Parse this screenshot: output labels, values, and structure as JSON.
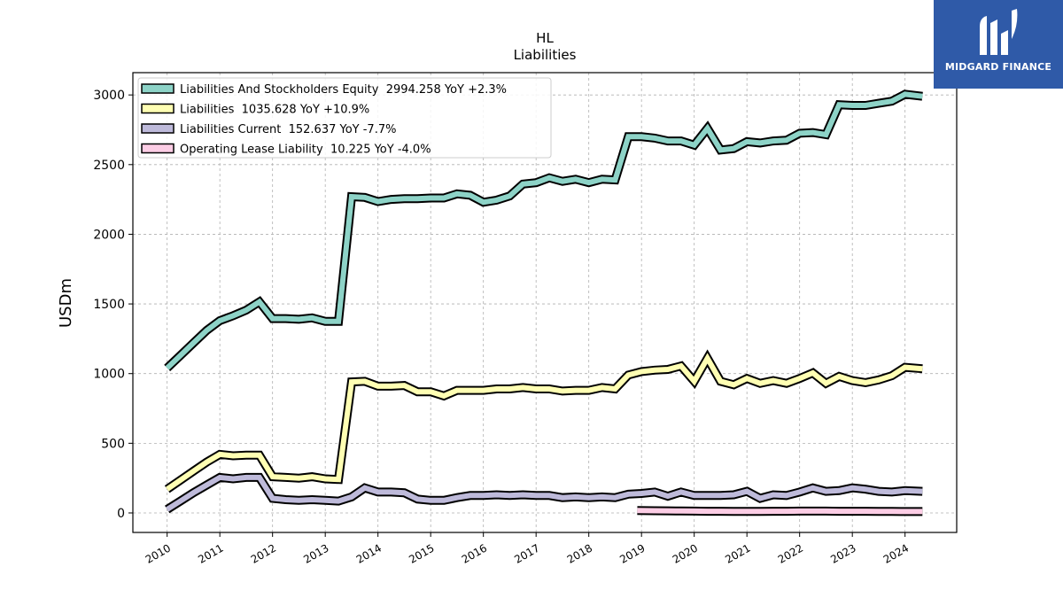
{
  "brand": {
    "name": "MIDGARD FINANCE",
    "bg_color": "#2f5aa8"
  },
  "chart_data": {
    "type": "line",
    "title": "HL",
    "subtitle": "Liabilities",
    "ylabel": "USDm",
    "xlabel": "",
    "ylim": [
      -140,
      3160
    ],
    "xlim": [
      2009.35,
      2024.98
    ],
    "yticks": [
      0,
      500,
      1000,
      1500,
      2000,
      2500,
      3000
    ],
    "xticks": [
      "2010",
      "2011",
      "2012",
      "2013",
      "2014",
      "2015",
      "2016",
      "2017",
      "2018",
      "2019",
      "2020",
      "2021",
      "2022",
      "2023",
      "2024"
    ],
    "grid": true,
    "legend_position": "top-left",
    "series": [
      {
        "name": "Liabilities And Stockholders Equity  2994.258 YoY +2.3%",
        "color": "#8dd3c7",
        "points": [
          [
            2010.0,
            1040
          ],
          [
            2010.25,
            1130
          ],
          [
            2010.5,
            1220
          ],
          [
            2010.75,
            1310
          ],
          [
            2011.0,
            1380
          ],
          [
            2011.25,
            1415
          ],
          [
            2011.5,
            1455
          ],
          [
            2011.75,
            1515
          ],
          [
            2012.0,
            1395
          ],
          [
            2012.25,
            1395
          ],
          [
            2012.5,
            1390
          ],
          [
            2012.75,
            1400
          ],
          [
            2013.0,
            1375
          ],
          [
            2013.25,
            1375
          ],
          [
            2013.5,
            2270
          ],
          [
            2013.75,
            2265
          ],
          [
            2014.0,
            2235
          ],
          [
            2014.25,
            2250
          ],
          [
            2014.5,
            2255
          ],
          [
            2014.75,
            2255
          ],
          [
            2015.0,
            2260
          ],
          [
            2015.25,
            2260
          ],
          [
            2015.5,
            2290
          ],
          [
            2015.75,
            2280
          ],
          [
            2016.0,
            2230
          ],
          [
            2016.25,
            2245
          ],
          [
            2016.5,
            2275
          ],
          [
            2016.75,
            2360
          ],
          [
            2017.0,
            2370
          ],
          [
            2017.25,
            2405
          ],
          [
            2017.5,
            2380
          ],
          [
            2017.75,
            2395
          ],
          [
            2018.0,
            2370
          ],
          [
            2018.25,
            2395
          ],
          [
            2018.5,
            2390
          ],
          [
            2018.75,
            2700
          ],
          [
            2019.0,
            2700
          ],
          [
            2019.25,
            2690
          ],
          [
            2019.5,
            2670
          ],
          [
            2019.75,
            2670
          ],
          [
            2020.0,
            2640
          ],
          [
            2020.25,
            2760
          ],
          [
            2020.5,
            2605
          ],
          [
            2020.75,
            2615
          ],
          [
            2021.0,
            2665
          ],
          [
            2021.25,
            2655
          ],
          [
            2021.5,
            2670
          ],
          [
            2021.75,
            2675
          ],
          [
            2022.0,
            2725
          ],
          [
            2022.25,
            2730
          ],
          [
            2022.5,
            2715
          ],
          [
            2022.75,
            2930
          ],
          [
            2023.0,
            2925
          ],
          [
            2023.25,
            2925
          ],
          [
            2023.5,
            2940
          ],
          [
            2023.75,
            2955
          ],
          [
            2024.0,
            3005
          ],
          [
            2024.33,
            2990
          ]
        ]
      },
      {
        "name": "Liabilities  1035.628 YoY +10.9%",
        "color": "#ffffb3",
        "points": [
          [
            2010.0,
            170
          ],
          [
            2010.25,
            235
          ],
          [
            2010.5,
            300
          ],
          [
            2010.75,
            365
          ],
          [
            2011.0,
            420
          ],
          [
            2011.25,
            410
          ],
          [
            2011.5,
            415
          ],
          [
            2011.75,
            415
          ],
          [
            2012.0,
            260
          ],
          [
            2012.25,
            255
          ],
          [
            2012.5,
            250
          ],
          [
            2012.75,
            260
          ],
          [
            2013.0,
            245
          ],
          [
            2013.25,
            240
          ],
          [
            2013.5,
            940
          ],
          [
            2013.75,
            945
          ],
          [
            2014.0,
            910
          ],
          [
            2014.25,
            910
          ],
          [
            2014.5,
            915
          ],
          [
            2014.75,
            870
          ],
          [
            2015.0,
            870
          ],
          [
            2015.25,
            840
          ],
          [
            2015.5,
            880
          ],
          [
            2015.75,
            880
          ],
          [
            2016.0,
            880
          ],
          [
            2016.25,
            890
          ],
          [
            2016.5,
            890
          ],
          [
            2016.75,
            900
          ],
          [
            2017.0,
            890
          ],
          [
            2017.25,
            890
          ],
          [
            2017.5,
            875
          ],
          [
            2017.75,
            880
          ],
          [
            2018.0,
            880
          ],
          [
            2018.25,
            900
          ],
          [
            2018.5,
            890
          ],
          [
            2018.75,
            990
          ],
          [
            2019.0,
            1015
          ],
          [
            2019.25,
            1025
          ],
          [
            2019.5,
            1030
          ],
          [
            2019.75,
            1055
          ],
          [
            2020.0,
            945
          ],
          [
            2020.25,
            1110
          ],
          [
            2020.5,
            945
          ],
          [
            2020.75,
            920
          ],
          [
            2021.0,
            965
          ],
          [
            2021.25,
            930
          ],
          [
            2021.5,
            950
          ],
          [
            2021.75,
            930
          ],
          [
            2022.0,
            965
          ],
          [
            2022.25,
            1005
          ],
          [
            2022.5,
            930
          ],
          [
            2022.75,
            980
          ],
          [
            2023.0,
            950
          ],
          [
            2023.25,
            935
          ],
          [
            2023.5,
            955
          ],
          [
            2023.75,
            985
          ],
          [
            2024.0,
            1045
          ],
          [
            2024.33,
            1035
          ]
        ]
      },
      {
        "name": "Liabilities Current  152.637 YoY -7.7%",
        "color": "#bebada",
        "points": [
          [
            2010.0,
            25
          ],
          [
            2010.25,
            85
          ],
          [
            2010.5,
            145
          ],
          [
            2010.75,
            200
          ],
          [
            2011.0,
            255
          ],
          [
            2011.25,
            245
          ],
          [
            2011.5,
            255
          ],
          [
            2011.75,
            255
          ],
          [
            2012.0,
            105
          ],
          [
            2012.25,
            95
          ],
          [
            2012.5,
            90
          ],
          [
            2012.75,
            95
          ],
          [
            2013.0,
            90
          ],
          [
            2013.25,
            85
          ],
          [
            2013.5,
            115
          ],
          [
            2013.75,
            180
          ],
          [
            2014.0,
            150
          ],
          [
            2014.25,
            150
          ],
          [
            2014.5,
            145
          ],
          [
            2014.75,
            100
          ],
          [
            2015.0,
            90
          ],
          [
            2015.25,
            90
          ],
          [
            2015.5,
            110
          ],
          [
            2015.75,
            125
          ],
          [
            2016.0,
            125
          ],
          [
            2016.25,
            130
          ],
          [
            2016.5,
            125
          ],
          [
            2016.75,
            130
          ],
          [
            2017.0,
            125
          ],
          [
            2017.25,
            125
          ],
          [
            2017.5,
            110
          ],
          [
            2017.75,
            115
          ],
          [
            2018.0,
            110
          ],
          [
            2018.25,
            115
          ],
          [
            2018.5,
            110
          ],
          [
            2018.75,
            135
          ],
          [
            2019.0,
            140
          ],
          [
            2019.25,
            150
          ],
          [
            2019.5,
            120
          ],
          [
            2019.75,
            150
          ],
          [
            2020.0,
            125
          ],
          [
            2020.25,
            125
          ],
          [
            2020.5,
            125
          ],
          [
            2020.75,
            130
          ],
          [
            2021.0,
            155
          ],
          [
            2021.25,
            105
          ],
          [
            2021.5,
            130
          ],
          [
            2021.75,
            125
          ],
          [
            2022.0,
            150
          ],
          [
            2022.25,
            180
          ],
          [
            2022.5,
            155
          ],
          [
            2022.75,
            160
          ],
          [
            2023.0,
            180
          ],
          [
            2023.25,
            170
          ],
          [
            2023.5,
            155
          ],
          [
            2023.75,
            150
          ],
          [
            2024.0,
            160
          ],
          [
            2024.33,
            155
          ]
        ]
      },
      {
        "name": "Operating Lease Liability  10.225 YoY -4.0%",
        "color": "#fccde5",
        "points": [
          [
            2018.92,
            18
          ],
          [
            2019.25,
            16
          ],
          [
            2019.5,
            15
          ],
          [
            2019.75,
            14
          ],
          [
            2020.0,
            13
          ],
          [
            2020.25,
            12
          ],
          [
            2020.5,
            12
          ],
          [
            2020.75,
            11
          ],
          [
            2021.0,
            11
          ],
          [
            2021.25,
            11
          ],
          [
            2021.5,
            12
          ],
          [
            2021.75,
            12
          ],
          [
            2022.0,
            13
          ],
          [
            2022.25,
            13
          ],
          [
            2022.5,
            13
          ],
          [
            2022.75,
            12
          ],
          [
            2023.0,
            12
          ],
          [
            2023.25,
            12
          ],
          [
            2023.5,
            11
          ],
          [
            2023.75,
            11
          ],
          [
            2024.0,
            10
          ],
          [
            2024.33,
            10
          ]
        ]
      }
    ]
  }
}
